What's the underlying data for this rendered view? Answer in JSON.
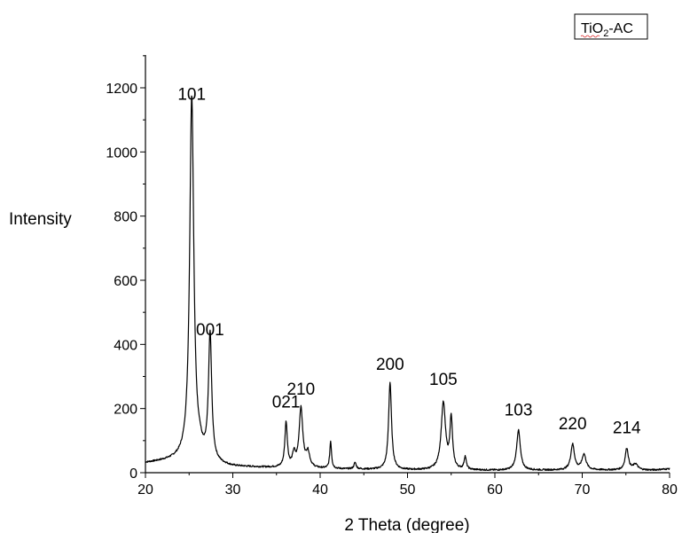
{
  "chart_data": {
    "type": "line",
    "title": "",
    "xlabel": "2 Theta (degree)",
    "ylabel": "Intensity",
    "xlim": [
      20,
      80
    ],
    "ylim": [
      0,
      1300
    ],
    "x_ticks": [
      20,
      30,
      40,
      50,
      60,
      70,
      80
    ],
    "y_ticks": [
      0,
      200,
      400,
      600,
      800,
      1000,
      1200
    ],
    "x_tick_labels": [
      "20",
      "30",
      "40",
      "50",
      "60",
      "70",
      "80"
    ],
    "y_tick_labels": [
      "0",
      "200",
      "400",
      "600",
      "800",
      "1000",
      "1200"
    ],
    "grid": false,
    "legend": {
      "position": "top-right",
      "series_name": {
        "base": "TiO",
        "subscript": "2",
        "suffix": "-AC"
      }
    },
    "series": [
      {
        "name": "TiO2-AC",
        "color": "#000000",
        "peaks": [
          {
            "x": 25.3,
            "y": 1130,
            "w": 0.28
          },
          {
            "x": 26.2,
            "y": 20,
            "w": 0.3
          },
          {
            "x": 27.4,
            "y": 395,
            "w": 0.22
          },
          {
            "x": 36.1,
            "y": 140,
            "w": 0.17
          },
          {
            "x": 37.0,
            "y": 40,
            "w": 0.2
          },
          {
            "x": 37.8,
            "y": 185,
            "w": 0.25
          },
          {
            "x": 38.6,
            "y": 45,
            "w": 0.25
          },
          {
            "x": 41.2,
            "y": 85,
            "w": 0.12
          },
          {
            "x": 44.0,
            "y": 20,
            "w": 0.15
          },
          {
            "x": 48.0,
            "y": 272,
            "w": 0.2
          },
          {
            "x": 54.1,
            "y": 208,
            "w": 0.3
          },
          {
            "x": 55.0,
            "y": 155,
            "w": 0.18
          },
          {
            "x": 56.6,
            "y": 40,
            "w": 0.15
          },
          {
            "x": 62.7,
            "y": 125,
            "w": 0.25
          },
          {
            "x": 68.9,
            "y": 80,
            "w": 0.25
          },
          {
            "x": 70.2,
            "y": 48,
            "w": 0.28
          },
          {
            "x": 75.1,
            "y": 68,
            "w": 0.22
          },
          {
            "x": 76.1,
            "y": 18,
            "w": 0.3
          }
        ],
        "baseline": [
          [
            20,
            30
          ],
          [
            24,
            40
          ],
          [
            25,
            45
          ],
          [
            28,
            25
          ],
          [
            30,
            18
          ],
          [
            40,
            12
          ],
          [
            50,
            8
          ],
          [
            60,
            7
          ],
          [
            70,
            8
          ],
          [
            78,
            8
          ],
          [
            80,
            12
          ]
        ]
      }
    ],
    "annotations": [
      {
        "text": "101",
        "x": 25.3,
        "y": 1130
      },
      {
        "text": "001",
        "x": 27.4,
        "y": 395
      },
      {
        "text": "021",
        "x": 36.1,
        "y": 170
      },
      {
        "text": "210",
        "x": 37.8,
        "y": 210
      },
      {
        "text": "200",
        "x": 48.0,
        "y": 288
      },
      {
        "text": "105",
        "x": 54.1,
        "y": 240
      },
      {
        "text": "103",
        "x": 62.7,
        "y": 145
      },
      {
        "text": "220",
        "x": 68.9,
        "y": 102
      },
      {
        "text": "214",
        "x": 75.1,
        "y": 90
      }
    ]
  }
}
